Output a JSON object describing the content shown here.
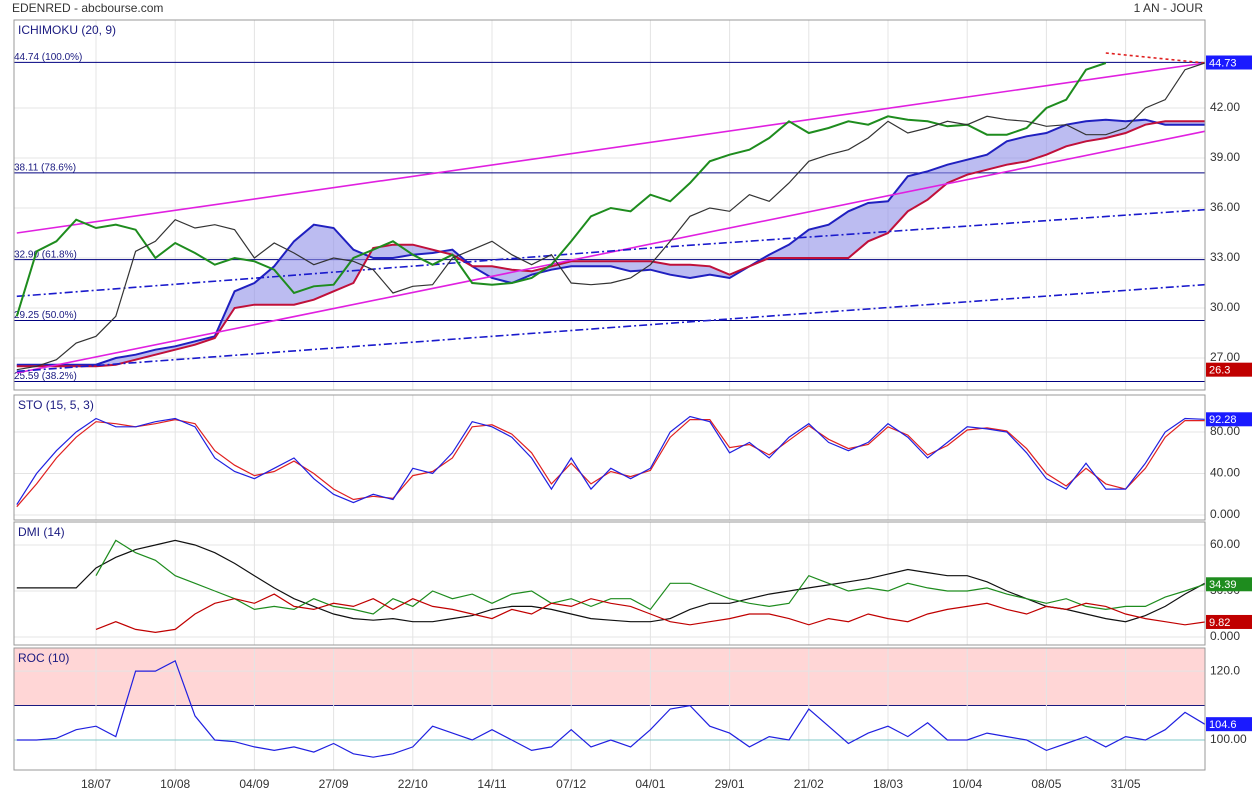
{
  "chart_data": {
    "type": "stock",
    "title": "EDENRED - abcbourse.com",
    "period": "1 AN - JOUR",
    "categories": [
      null,
      null,
      null,
      null,
      "18/07",
      null,
      null,
      null,
      "10/08",
      null,
      null,
      null,
      "04/09",
      null,
      null,
      null,
      "27/09",
      null,
      null,
      null,
      "22/10",
      null,
      null,
      null,
      "14/11",
      null,
      null,
      null,
      "07/12",
      null,
      null,
      null,
      "04/01",
      null,
      null,
      null,
      "29/01",
      null,
      null,
      null,
      "21/02",
      null,
      null,
      null,
      "18/03",
      null,
      null,
      null,
      "10/04",
      null,
      null,
      null,
      "08/05",
      null,
      null,
      null,
      "31/05",
      null,
      null,
      null,
      null
    ],
    "panels": [
      {
        "type": "line",
        "title": "ICHIMOKU (20, 9)",
        "ylim": [
          25.08,
          47.28
        ],
        "yticks": [
          {
            "value": 27,
            "label": "27.00"
          },
          {
            "value": 30,
            "label": "30.00"
          },
          {
            "value": 33,
            "label": "33.00"
          },
          {
            "value": 36,
            "label": "36.00"
          },
          {
            "value": 39,
            "label": "39.00"
          },
          {
            "value": 42,
            "label": "42.00"
          }
        ],
        "levels": [
          {
            "value": 44.74,
            "label": "44.74 (100.0%)"
          },
          {
            "value": 38.11,
            "label": "38.11 (78.6%)"
          },
          {
            "value": 32.9,
            "label": "32.90 (61.8%)"
          },
          {
            "value": 29.25,
            "label": "29.25 (50.0%)"
          },
          {
            "value": 25.59,
            "label": "25.59 (38.2%)"
          }
        ],
        "cloud": {
          "color": "#8f8fe8",
          "span_a": [
            26.6,
            26.6,
            26.6,
            26.6,
            26.6,
            27.0,
            27.2,
            27.5,
            27.7,
            28.0,
            28.3,
            31.0,
            31.5,
            32.5,
            34.0,
            35.0,
            34.8,
            33.5,
            33.0,
            33.0,
            33.2,
            33.3,
            33.5,
            32.5,
            31.8,
            31.5,
            32.0,
            32.3,
            32.5,
            32.5,
            32.5,
            32.2,
            32.3,
            32.0,
            31.8,
            32.0,
            31.8,
            32.5,
            33.2,
            33.8,
            34.7,
            35.0,
            35.8,
            36.3,
            36.4,
            37.9,
            38.2,
            38.6,
            38.9,
            39.2,
            40.0,
            40.3,
            40.5,
            41.0,
            41.2,
            41.3,
            41.2,
            41.3,
            41.0,
            41.0,
            41.0
          ],
          "span_a_color": "#2020c0",
          "span_b": [
            26.5,
            26.5,
            26.5,
            26.5,
            26.5,
            26.6,
            26.9,
            27.2,
            27.5,
            27.8,
            28.2,
            30.0,
            30.2,
            30.2,
            30.2,
            30.5,
            31.0,
            31.5,
            33.6,
            33.8,
            33.8,
            33.5,
            33.2,
            32.5,
            32.5,
            32.3,
            32.2,
            32.5,
            32.8,
            32.8,
            32.8,
            32.8,
            32.8,
            32.6,
            32.6,
            32.5,
            32.0,
            32.5,
            33.0,
            33.0,
            33.0,
            33.0,
            33.0,
            34.0,
            34.5,
            35.8,
            36.5,
            37.5,
            38.0,
            38.3,
            38.6,
            38.8,
            39.2,
            39.7,
            40.0,
            40.2,
            40.5,
            41.0,
            41.2,
            41.2,
            41.2
          ],
          "span_b_color": "#c0103a"
        },
        "trendlines": [
          {
            "color": "#e020e0",
            "x": [
              0,
              60
            ],
            "values": [
              34.5,
              44.7
            ]
          },
          {
            "color": "#e020e0",
            "x": [
              0,
              60
            ],
            "values": [
              26.1,
              40.6
            ]
          },
          {
            "color": "#1a1acc",
            "dash": "8 3 2 3",
            "x": [
              0,
              32,
              60
            ],
            "values": [
              30.7,
              33.6,
              35.9
            ]
          },
          {
            "color": "#1a1acc",
            "dash": "8 3 2 3",
            "x": [
              0,
              32,
              60
            ],
            "values": [
              26.2,
              29.0,
              31.4
            ]
          },
          {
            "color": "#e02020",
            "dash": "3 3",
            "x": [
              55,
              60
            ],
            "values": [
              45.3,
              44.7
            ]
          }
        ],
        "series": [
          {
            "color": "#1e8c1e",
            "width": 2,
            "values": [
              29.5,
              33.4,
              34.0,
              35.3,
              34.8,
              35.0,
              34.7,
              33.0,
              33.9,
              33.3,
              32.6,
              33.0,
              32.8,
              32.3,
              30.9,
              31.3,
              31.4,
              33.0,
              33.5,
              34.0,
              33.2,
              32.6,
              33.2,
              31.5,
              31.4,
              31.5,
              31.8,
              32.6,
              34.0,
              35.5,
              36.0,
              35.8,
              36.8,
              36.4,
              37.5,
              38.8,
              39.2,
              39.5,
              40.2,
              41.2,
              40.5,
              40.8,
              41.2,
              41.0,
              41.5,
              41.3,
              41.2,
              40.9,
              41.0,
              40.4,
              40.4,
              40.8,
              42.0,
              42.5,
              44.3,
              44.7,
              null,
              null,
              null,
              null,
              null
            ]
          },
          {
            "color": "#333333",
            "width": 1.2,
            "values": [
              26.3,
              26.5,
              26.9,
              27.9,
              28.3,
              29.5,
              33.4,
              34.0,
              35.3,
              34.8,
              35.0,
              34.7,
              33.0,
              33.9,
              33.3,
              32.6,
              33.0,
              32.8,
              32.3,
              30.9,
              31.3,
              31.4,
              33.0,
              33.5,
              34.0,
              33.2,
              32.6,
              33.2,
              31.5,
              31.4,
              31.5,
              31.8,
              32.6,
              34.0,
              35.5,
              36.0,
              35.8,
              36.8,
              36.4,
              37.5,
              38.8,
              39.2,
              39.5,
              40.2,
              41.2,
              40.5,
              40.8,
              41.2,
              41.0,
              41.5,
              41.3,
              41.2,
              40.9,
              41.0,
              40.4,
              40.4,
              40.8,
              42.0,
              42.5,
              44.3,
              44.7
            ]
          }
        ],
        "badges": [
          {
            "value": 44.73,
            "color": "#1a1aff"
          },
          {
            "value": 26.3,
            "color": "#c00000"
          }
        ]
      },
      {
        "type": "line",
        "title": "STO (15, 5, 3)",
        "ylim": [
          -4.8,
          115.7
        ],
        "yticks": [
          {
            "value": 0,
            "label": "0.000"
          },
          {
            "value": 40,
            "label": "40.00"
          },
          {
            "value": 80,
            "label": "80.00"
          }
        ],
        "series": [
          {
            "color": "#e02020",
            "width": 1.2,
            "values": [
              8,
              30,
              55,
              75,
              90,
              88,
              85,
              88,
              92,
              88,
              62,
              48,
              38,
              42,
              52,
              40,
              25,
              15,
              18,
              16,
              38,
              42,
              55,
              85,
              87,
              78,
              60,
              30,
              50,
              30,
              42,
              37,
              43,
              75,
              92,
              92,
              65,
              68,
              58,
              72,
              86,
              73,
              64,
              68,
              85,
              77,
              58,
              67,
              82,
              84,
              81,
              64,
              40,
              28,
              45,
              30,
              25,
              45,
              75,
              91,
              91
            ]
          },
          {
            "color": "#2020e0",
            "width": 1.2,
            "values": [
              10,
              40,
              62,
              80,
              93,
              85,
              85,
              90,
              93,
              85,
              55,
              42,
              35,
              45,
              55,
              35,
              20,
              12,
              20,
              15,
              45,
              40,
              60,
              90,
              85,
              75,
              55,
              25,
              55,
              25,
              45,
              35,
              45,
              80,
              95,
              90,
              60,
              70,
              55,
              75,
              88,
              70,
              62,
              70,
              88,
              75,
              55,
              70,
              85,
              83,
              80,
              60,
              35,
              25,
              50,
              25,
              25,
              50,
              80,
              93,
              92.28
            ]
          }
        ],
        "badges": [
          {
            "value": 92.28,
            "color": "#1a1aff"
          }
        ]
      },
      {
        "type": "line",
        "title": "DMI (14)",
        "ylim": [
          -5.2,
          75
        ],
        "yticks": [
          {
            "value": 0,
            "label": "0.000"
          },
          {
            "value": 30,
            "label": "30.00"
          },
          {
            "value": 60,
            "label": "60.00"
          }
        ],
        "series": [
          {
            "color": "#111111",
            "width": 1.2,
            "values": [
              32,
              32,
              32,
              32,
              45,
              52,
              57,
              60,
              63,
              60,
              55,
              48,
              40,
              32,
              25,
              20,
              15,
              12,
              11,
              12,
              10,
              10,
              12,
              14,
              18,
              20,
              20,
              18,
              15,
              12,
              11,
              10,
              10,
              12,
              18,
              22,
              22,
              25,
              28,
              30,
              32,
              34,
              36,
              38,
              41,
              44,
              42,
              40,
              40,
              36,
              30,
              25,
              20,
              18,
              15,
              12,
              10,
              14,
              20,
              28,
              35
            ]
          },
          {
            "color": "#1e8c1e",
            "width": 1.2,
            "values": [
              null,
              null,
              null,
              null,
              40,
              63,
              55,
              50,
              40,
              35,
              30,
              25,
              18,
              20,
              18,
              25,
              20,
              18,
              15,
              25,
              20,
              30,
              25,
              28,
              22,
              28,
              30,
              22,
              25,
              20,
              25,
              25,
              18,
              35,
              35,
              30,
              25,
              22,
              20,
              22,
              40,
              35,
              30,
              32,
              30,
              35,
              32,
              30,
              30,
              32,
              28,
              25,
              22,
              25,
              20,
              18,
              20,
              20,
              26,
              30,
              34.39
            ]
          },
          {
            "color": "#c00000",
            "width": 1.2,
            "values": [
              null,
              null,
              null,
              null,
              5,
              10,
              5,
              3,
              5,
              15,
              22,
              25,
              22,
              28,
              20,
              18,
              22,
              20,
              25,
              18,
              25,
              20,
              18,
              15,
              12,
              18,
              15,
              22,
              20,
              25,
              22,
              20,
              15,
              10,
              8,
              10,
              12,
              15,
              15,
              12,
              8,
              12,
              10,
              15,
              12,
              10,
              15,
              18,
              20,
              22,
              18,
              15,
              20,
              18,
              22,
              20,
              15,
              12,
              10,
              8,
              9.82
            ]
          }
        ],
        "badges": [
          {
            "value": 34.39,
            "color": "#1e8c1e"
          },
          {
            "value": 9.82,
            "color": "#c00000"
          }
        ]
      },
      {
        "type": "line",
        "title": "ROC (10)",
        "ylim": [
          91.3,
          126.7
        ],
        "yticks": [
          {
            "value": 100,
            "label": "100.00"
          },
          {
            "value": 120,
            "label": "120.0"
          }
        ],
        "band": {
          "value": 110,
          "color": "#ffd6d6"
        },
        "reference": {
          "value": 100,
          "color": "#7fc9c9"
        },
        "series": [
          {
            "color": "#2020e0",
            "width": 1.2,
            "values": [
              100,
              100,
              100.5,
              103,
              104,
              101,
              120,
              120,
              123,
              107,
              100,
              99.5,
              98,
              97,
              98,
              96.5,
              99,
              96,
              95,
              96,
              98,
              104,
              102,
              100,
              103,
              100,
              97,
              98,
              103,
              98,
              100,
              98,
              103,
              109,
              110,
              104,
              102,
              98,
              101,
              100,
              109,
              104,
              99,
              102,
              104,
              101,
              105,
              100,
              100,
              102,
              101,
              100,
              97,
              99,
              101,
              98,
              101,
              100,
              103,
              108,
              104.6
            ]
          }
        ],
        "badges": [
          {
            "value": 104.6,
            "color": "#1a1aff"
          }
        ]
      }
    ]
  }
}
